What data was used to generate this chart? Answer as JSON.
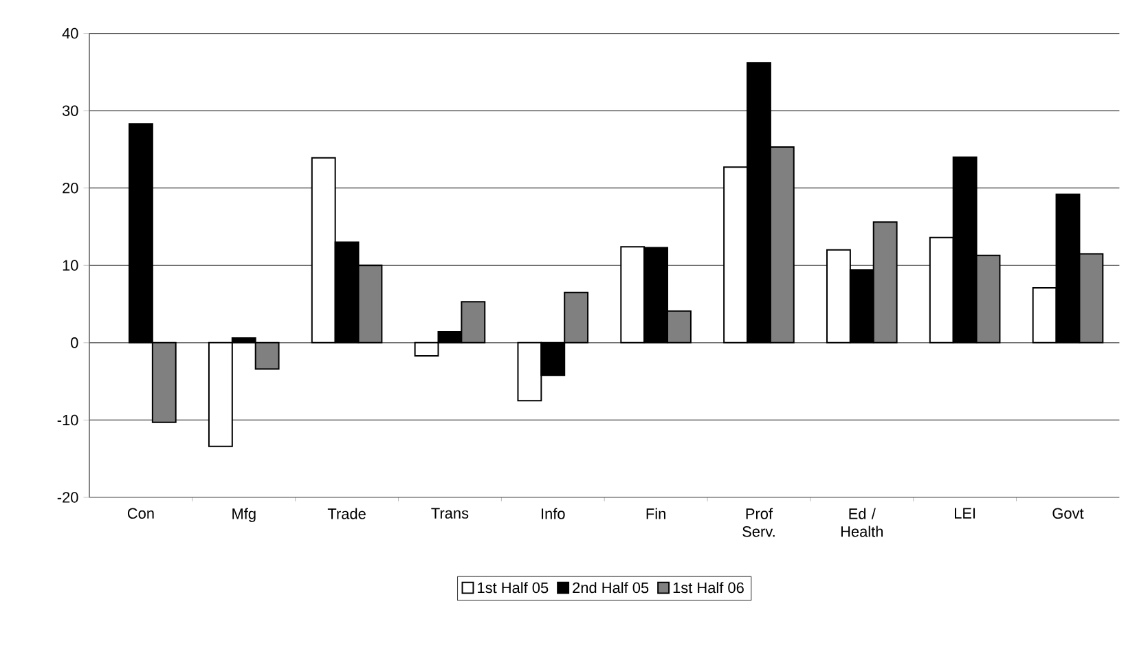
{
  "chart_data": {
    "type": "bar",
    "categories": [
      "Con",
      "Mfg",
      "Trade",
      "Trans",
      "Info",
      "Fin",
      "Prof Serv.",
      "Ed / Health",
      "LEI",
      "Govt"
    ],
    "series": [
      {
        "name": "1st Half 05",
        "color": "#ffffff",
        "values": [
          null,
          -13.4,
          23.9,
          -1.7,
          -7.5,
          12.4,
          22.7,
          12.0,
          13.6,
          7.1
        ]
      },
      {
        "name": "2nd Half 05",
        "color": "#000000",
        "values": [
          28.3,
          0.6,
          13.0,
          1.4,
          -4.2,
          12.3,
          36.2,
          9.4,
          24.0,
          19.2
        ]
      },
      {
        "name": "1st Half 06",
        "color": "#808080",
        "values": [
          -10.3,
          -3.4,
          10.0,
          5.3,
          6.5,
          4.1,
          25.3,
          15.6,
          11.3,
          11.5
        ]
      }
    ],
    "ylim": [
      -20,
      40
    ],
    "yticks": [
      -20,
      -10,
      0,
      10,
      20,
      30,
      40
    ],
    "grid": "y",
    "legend": "bottom"
  }
}
